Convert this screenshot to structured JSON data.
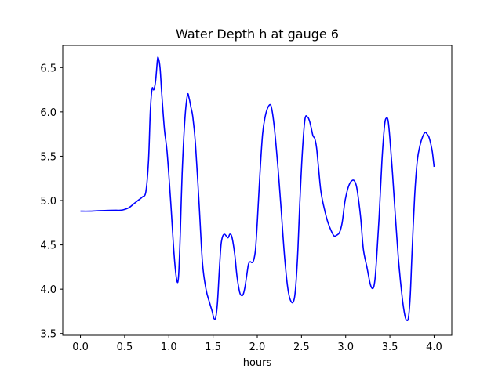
{
  "chart_data": {
    "type": "line",
    "title": "Water Depth h at gauge 6",
    "xlabel": "hours",
    "ylabel": "",
    "xlim": [
      -0.2,
      4.2
    ],
    "ylim": [
      3.48,
      6.75
    ],
    "xticks": [
      0.0,
      0.5,
      1.0,
      1.5,
      2.0,
      2.5,
      3.0,
      3.5,
      4.0
    ],
    "xtick_labels": [
      "0.0",
      "0.5",
      "1.0",
      "1.5",
      "2.0",
      "2.5",
      "3.0",
      "3.5",
      "4.0"
    ],
    "yticks": [
      3.5,
      4.0,
      4.5,
      5.0,
      5.5,
      6.0,
      6.5
    ],
    "ytick_labels": [
      "3.5",
      "4.0",
      "4.5",
      "5.0",
      "5.5",
      "6.0",
      "6.5"
    ],
    "grid": false,
    "series": [
      {
        "color": "#0000ff",
        "x": [
          0.0,
          0.1,
          0.2,
          0.3,
          0.4,
          0.45,
          0.5,
          0.55,
          0.6,
          0.65,
          0.7,
          0.74,
          0.77,
          0.79,
          0.81,
          0.83,
          0.85,
          0.87,
          0.88,
          0.9,
          0.92,
          0.95,
          0.98,
          1.02,
          1.06,
          1.09,
          1.11,
          1.13,
          1.15,
          1.18,
          1.21,
          1.23,
          1.25,
          1.27,
          1.3,
          1.34,
          1.38,
          1.42,
          1.46,
          1.49,
          1.51,
          1.53,
          1.55,
          1.57,
          1.59,
          1.61,
          1.63,
          1.65,
          1.67,
          1.69,
          1.71,
          1.73,
          1.75,
          1.77,
          1.8,
          1.82,
          1.84,
          1.86,
          1.88,
          1.9,
          1.92,
          1.94,
          1.96,
          1.98,
          2.0,
          2.03,
          2.06,
          2.09,
          2.12,
          2.15,
          2.17,
          2.19,
          2.21,
          2.24,
          2.27,
          2.31,
          2.35,
          2.39,
          2.42,
          2.44,
          2.46,
          2.48,
          2.51,
          2.54,
          2.57,
          2.59,
          2.61,
          2.63,
          2.65,
          2.67,
          2.69,
          2.72,
          2.76,
          2.8,
          2.84,
          2.87,
          2.9,
          2.93,
          2.96,
          2.99,
          3.02,
          3.05,
          3.08,
          3.1,
          3.12,
          3.14,
          3.17,
          3.2,
          3.24,
          3.28,
          3.31,
          3.33,
          3.35,
          3.38,
          3.41,
          3.44,
          3.46,
          3.48,
          3.5,
          3.53,
          3.56,
          3.6,
          3.64,
          3.67,
          3.69,
          3.71,
          3.73,
          3.75,
          3.78,
          3.81,
          3.84,
          3.87,
          3.9,
          3.92,
          3.94,
          3.96,
          3.98,
          4.0
        ],
        "y": [
          4.88,
          4.88,
          4.885,
          4.888,
          4.89,
          4.89,
          4.9,
          4.92,
          4.96,
          5.0,
          5.04,
          5.1,
          5.45,
          6.0,
          6.26,
          6.25,
          6.35,
          6.58,
          6.61,
          6.5,
          6.2,
          5.8,
          5.55,
          5.0,
          4.38,
          4.1,
          4.15,
          4.65,
          5.3,
          5.9,
          6.19,
          6.15,
          6.05,
          5.95,
          5.65,
          5.0,
          4.3,
          4.0,
          3.85,
          3.75,
          3.67,
          3.68,
          3.85,
          4.2,
          4.5,
          4.6,
          4.62,
          4.6,
          4.58,
          4.62,
          4.6,
          4.5,
          4.35,
          4.15,
          3.97,
          3.93,
          3.94,
          4.02,
          4.15,
          4.28,
          4.31,
          4.3,
          4.33,
          4.45,
          4.75,
          5.3,
          5.75,
          5.95,
          6.05,
          6.08,
          6.0,
          5.85,
          5.65,
          5.3,
          4.9,
          4.35,
          3.98,
          3.85,
          3.9,
          4.1,
          4.45,
          4.95,
          5.55,
          5.92,
          5.94,
          5.9,
          5.82,
          5.73,
          5.7,
          5.6,
          5.4,
          5.1,
          4.9,
          4.75,
          4.65,
          4.6,
          4.61,
          4.64,
          4.75,
          4.98,
          5.12,
          5.2,
          5.23,
          5.22,
          5.17,
          5.05,
          4.8,
          4.45,
          4.25,
          4.05,
          4.01,
          4.1,
          4.35,
          4.85,
          5.45,
          5.85,
          5.93,
          5.9,
          5.7,
          5.3,
          4.85,
          4.3,
          3.9,
          3.7,
          3.65,
          3.68,
          3.92,
          4.4,
          5.05,
          5.45,
          5.62,
          5.72,
          5.77,
          5.75,
          5.72,
          5.65,
          5.55,
          5.38
        ]
      }
    ]
  }
}
